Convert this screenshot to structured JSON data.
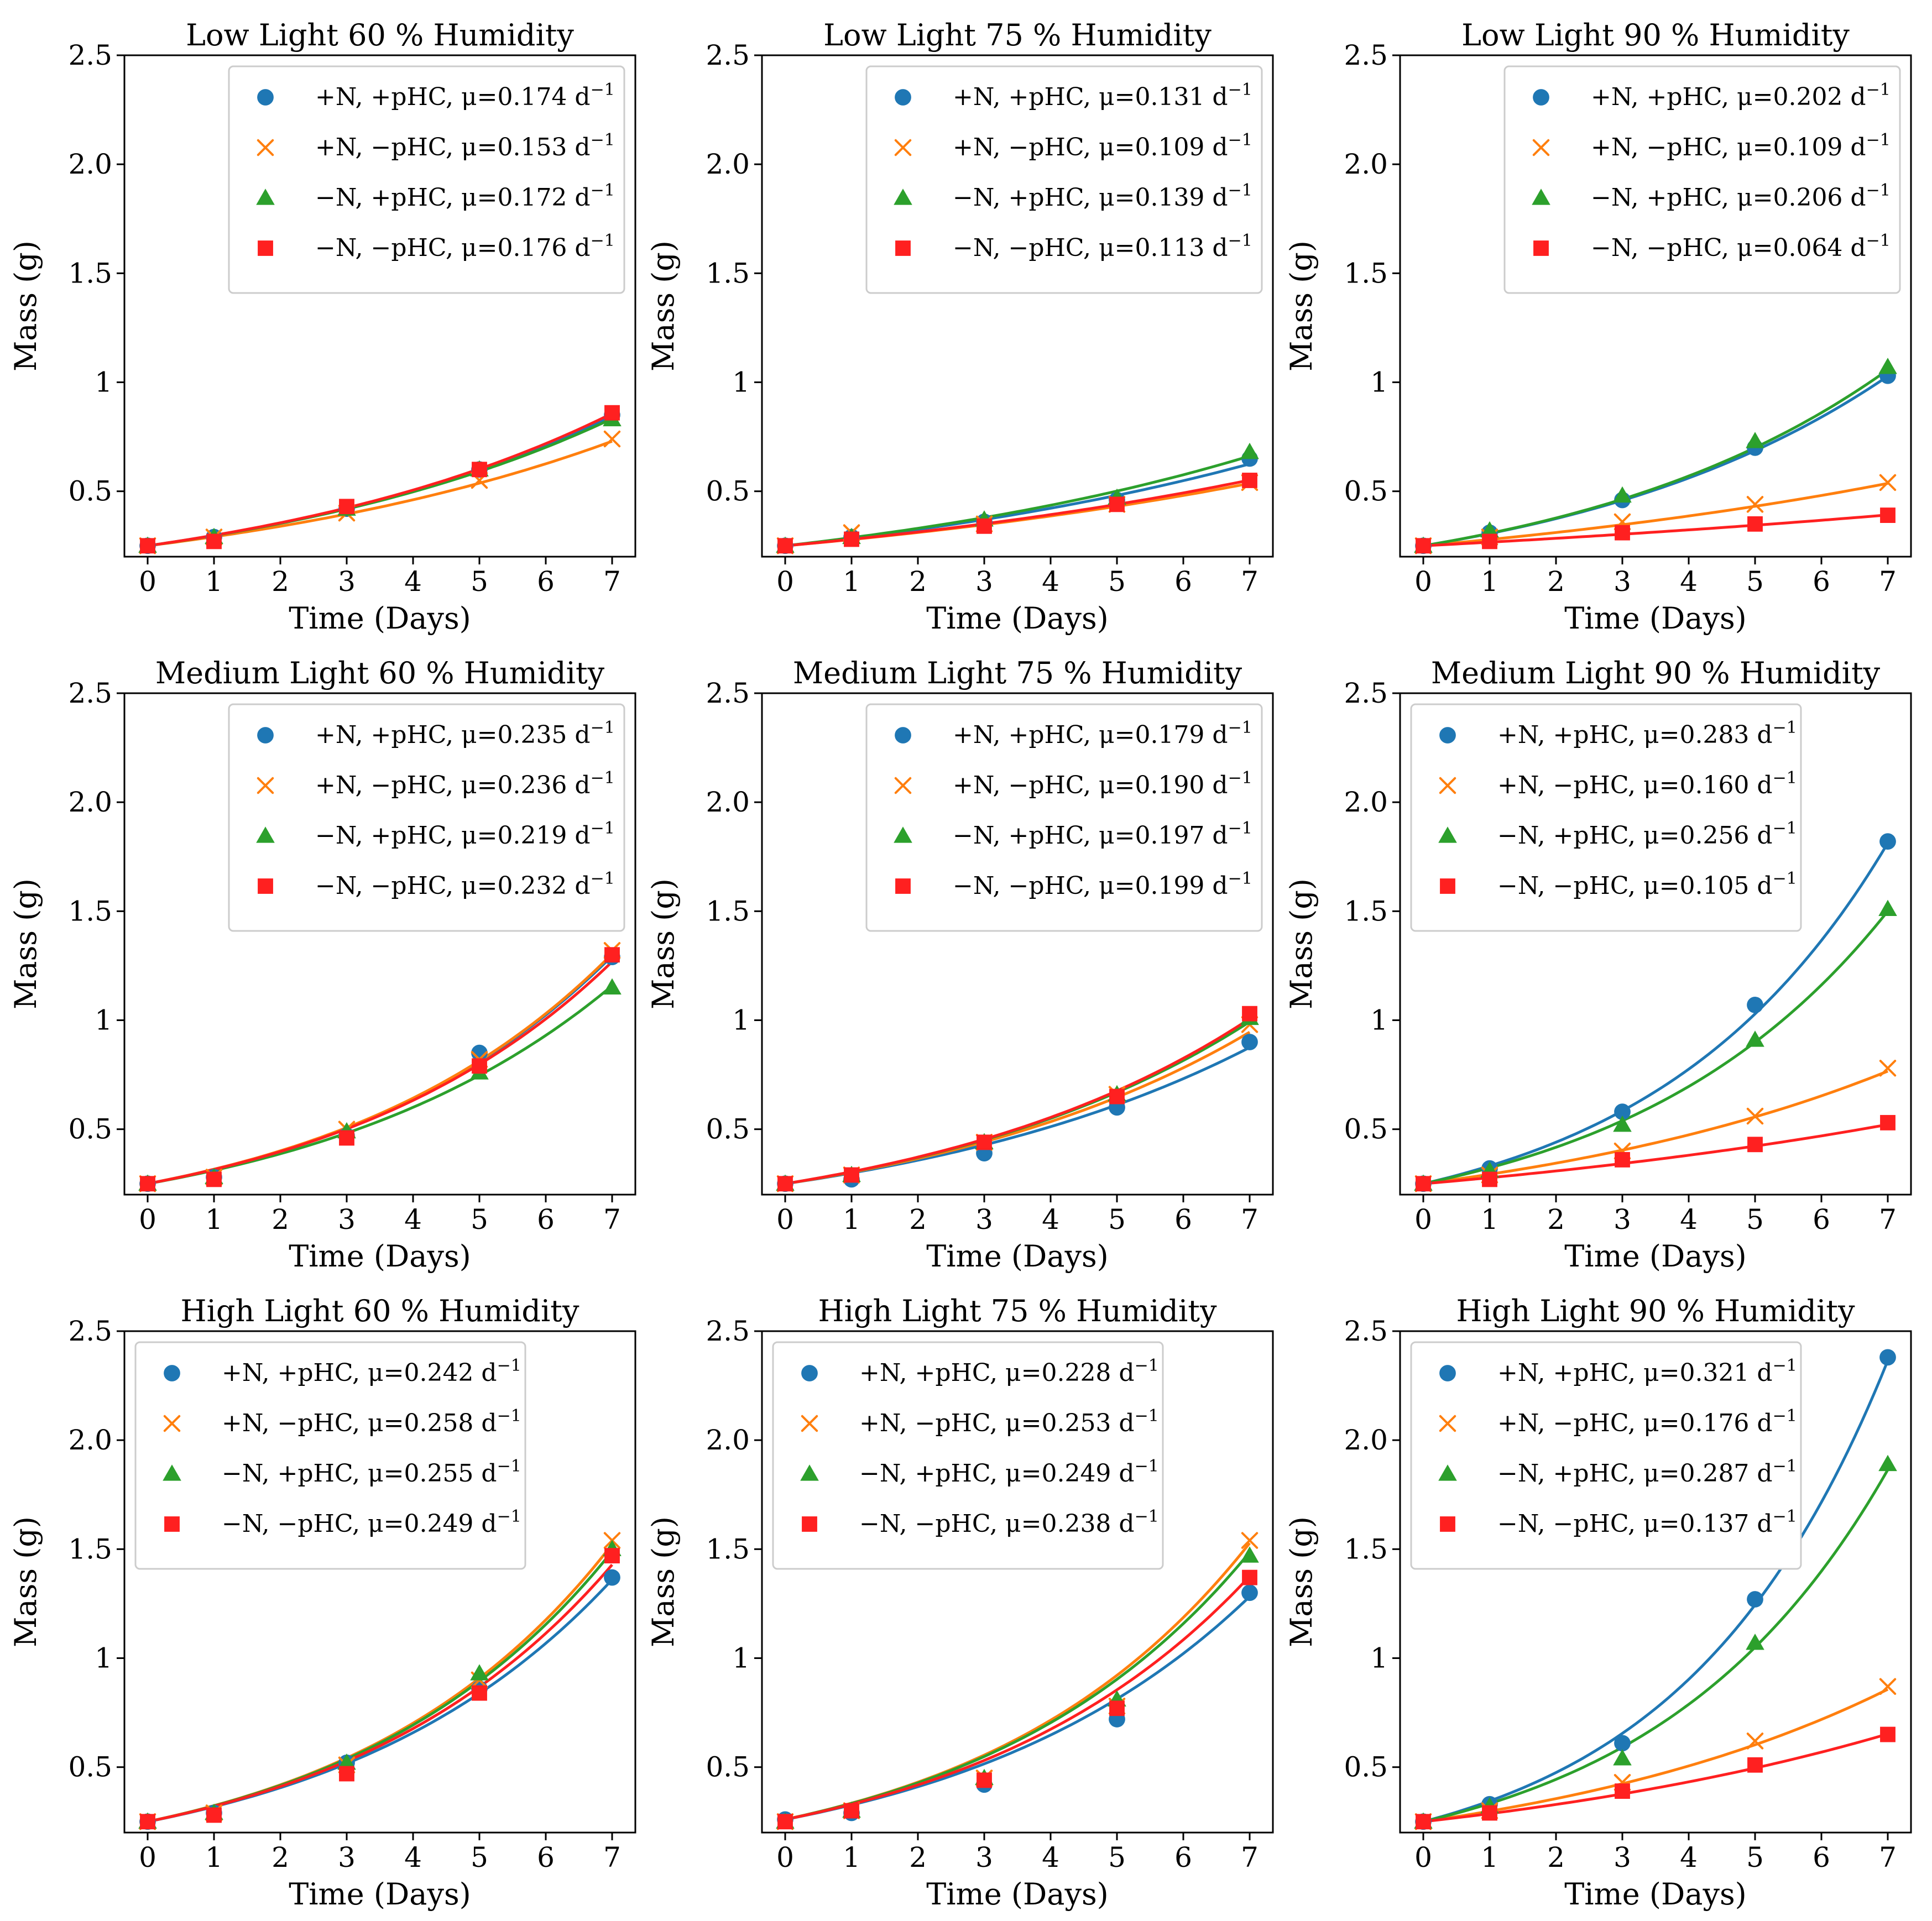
{
  "figure": {
    "colors": {
      "pNpPHC": "#1f77b4",
      "pNmPHC": "#ff7f0e",
      "mNpPHC": "#2ca02c",
      "mNmPHC": "#ff2020"
    },
    "markers": [
      "circle",
      "x",
      "triangle",
      "square"
    ],
    "series_labels": [
      "+N, +pHC, ",
      "+N, −pHC, ",
      "−N, +pHC, ",
      "−N, −pHC, "
    ],
    "rate_unit": " d",
    "rate_exponent": "−1"
  },
  "chart_data": [
    {
      "type": "scatter",
      "title": "Low Light 60 % Humidity",
      "xlabel": "Time (Days)",
      "ylabel": "Mass (g)",
      "xlim": [
        -0.35,
        7.35
      ],
      "ylim": [
        0.2,
        2.5
      ],
      "x_ticks": [
        0,
        1,
        2,
        3,
        4,
        5,
        6,
        7
      ],
      "x_tick_labels": [
        "0",
        "1",
        "2",
        "3",
        "4",
        "5",
        "6",
        "7"
      ],
      "y_ticks": [
        0.5,
        1.0,
        1.5,
        2.0,
        2.5
      ],
      "y_tick_labels": [
        "0.5",
        "1",
        "1.5",
        "2.0",
        "2.5"
      ],
      "legend_position": "top-right",
      "x": [
        0,
        1,
        3,
        5,
        7
      ],
      "series": [
        {
          "name": "+N, +pHC",
          "mu": "μ=0.174",
          "rate": 0.174,
          "values": [
            0.25,
            0.29,
            0.42,
            0.6,
            0.85
          ]
        },
        {
          "name": "+N, −pHC",
          "mu": "μ=0.153",
          "rate": 0.153,
          "values": [
            0.25,
            0.29,
            0.4,
            0.55,
            0.74
          ]
        },
        {
          "name": "−N, +pHC",
          "mu": "μ=0.172",
          "rate": 0.172,
          "values": [
            0.25,
            0.29,
            0.42,
            0.6,
            0.83
          ]
        },
        {
          "name": "−N, −pHC",
          "mu": "μ=0.176",
          "rate": 0.176,
          "values": [
            0.25,
            0.27,
            0.43,
            0.6,
            0.86
          ]
        }
      ]
    },
    {
      "type": "scatter",
      "title": "Low Light 75 % Humidity",
      "xlabel": "Time (Days)",
      "ylabel": "Mass (g)",
      "xlim": [
        -0.35,
        7.35
      ],
      "ylim": [
        0.2,
        2.5
      ],
      "x_ticks": [
        0,
        1,
        2,
        3,
        4,
        5,
        6,
        7
      ],
      "x_tick_labels": [
        "0",
        "1",
        "2",
        "3",
        "4",
        "5",
        "6",
        "7"
      ],
      "y_ticks": [
        0.5,
        1.0,
        1.5,
        2.0,
        2.5
      ],
      "y_tick_labels": [
        "0.5",
        "1",
        "1.5",
        "2.0",
        "2.5"
      ],
      "legend_position": "top-right",
      "x": [
        0,
        1,
        3,
        5,
        7
      ],
      "series": [
        {
          "name": "+N, +pHC",
          "mu": "μ=0.131",
          "rate": 0.131,
          "values": [
            0.25,
            0.29,
            0.36,
            0.46,
            0.65
          ]
        },
        {
          "name": "+N, −pHC",
          "mu": "μ=0.109",
          "rate": 0.109,
          "values": [
            0.25,
            0.31,
            0.35,
            0.44,
            0.54
          ]
        },
        {
          "name": "−N, +pHC",
          "mu": "μ=0.139",
          "rate": 0.139,
          "values": [
            0.25,
            0.29,
            0.37,
            0.47,
            0.68
          ]
        },
        {
          "name": "−N, −pHC",
          "mu": "μ=0.113",
          "rate": 0.113,
          "values": [
            0.25,
            0.28,
            0.34,
            0.44,
            0.55
          ]
        }
      ]
    },
    {
      "type": "scatter",
      "title": "Low Light 90 % Humidity",
      "xlabel": "Time (Days)",
      "ylabel": "Mass (g)",
      "xlim": [
        -0.35,
        7.35
      ],
      "ylim": [
        0.2,
        2.5
      ],
      "x_ticks": [
        0,
        1,
        2,
        3,
        4,
        5,
        6,
        7
      ],
      "x_tick_labels": [
        "0",
        "1",
        "2",
        "3",
        "4",
        "5",
        "6",
        "7"
      ],
      "y_ticks": [
        0.5,
        1.0,
        1.5,
        2.0,
        2.5
      ],
      "y_tick_labels": [
        "0.5",
        "1",
        "1.5",
        "2.0",
        "2.5"
      ],
      "legend_position": "top-right",
      "x": [
        0,
        1,
        3,
        5,
        7
      ],
      "series": [
        {
          "name": "+N, +pHC",
          "mu": "μ=0.202",
          "rate": 0.202,
          "values": [
            0.25,
            0.31,
            0.46,
            0.7,
            1.03
          ]
        },
        {
          "name": "+N, −pHC",
          "mu": "μ=0.109",
          "rate": 0.109,
          "values": [
            0.25,
            0.29,
            0.36,
            0.44,
            0.54
          ]
        },
        {
          "name": "−N, +pHC",
          "mu": "μ=0.206",
          "rate": 0.206,
          "values": [
            0.25,
            0.32,
            0.48,
            0.73,
            1.07
          ]
        },
        {
          "name": "−N, −pHC",
          "mu": "μ=0.064",
          "rate": 0.064,
          "values": [
            0.25,
            0.27,
            0.31,
            0.35,
            0.39
          ]
        }
      ]
    },
    {
      "type": "scatter",
      "title": "Medium Light 60 % Humidity",
      "xlabel": "Time (Days)",
      "ylabel": "Mass (g)",
      "xlim": [
        -0.35,
        7.35
      ],
      "ylim": [
        0.2,
        2.5
      ],
      "x_ticks": [
        0,
        1,
        2,
        3,
        4,
        5,
        6,
        7
      ],
      "x_tick_labels": [
        "0",
        "1",
        "2",
        "3",
        "4",
        "5",
        "6",
        "7"
      ],
      "y_ticks": [
        0.5,
        1.0,
        1.5,
        2.0,
        2.5
      ],
      "y_tick_labels": [
        "0.5",
        "1",
        "1.5",
        "2.0",
        "2.5"
      ],
      "legend_position": "top-right",
      "x": [
        0,
        1,
        3,
        5,
        7
      ],
      "series": [
        {
          "name": "+N, +pHC",
          "mu": "μ=0.235",
          "rate": 0.235,
          "values": [
            0.25,
            0.28,
            0.47,
            0.85,
            1.29
          ]
        },
        {
          "name": "+N, −pHC",
          "mu": "μ=0.236",
          "rate": 0.236,
          "values": [
            0.25,
            0.28,
            0.5,
            0.82,
            1.32
          ]
        },
        {
          "name": "−N, +pHC",
          "mu": "μ=0.219",
          "rate": 0.219,
          "values": [
            0.25,
            0.28,
            0.49,
            0.76,
            1.15
          ]
        },
        {
          "name": "−N, −pHC",
          "mu": "μ=0.232",
          "rate": 0.232,
          "values": [
            0.25,
            0.27,
            0.46,
            0.79,
            1.3
          ]
        }
      ]
    },
    {
      "type": "scatter",
      "title": "Medium Light 75 % Humidity",
      "xlabel": "Time (Days)",
      "ylabel": "Mass (g)",
      "xlim": [
        -0.35,
        7.35
      ],
      "ylim": [
        0.2,
        2.5
      ],
      "x_ticks": [
        0,
        1,
        2,
        3,
        4,
        5,
        6,
        7
      ],
      "x_tick_labels": [
        "0",
        "1",
        "2",
        "3",
        "4",
        "5",
        "6",
        "7"
      ],
      "y_ticks": [
        0.5,
        1.0,
        1.5,
        2.0,
        2.5
      ],
      "y_tick_labels": [
        "0.5",
        "1",
        "1.5",
        "2.0",
        "2.5"
      ],
      "legend_position": "top-right",
      "x": [
        0,
        1,
        3,
        5,
        7
      ],
      "series": [
        {
          "name": "+N, +pHC",
          "mu": "μ=0.179",
          "rate": 0.179,
          "values": [
            0.25,
            0.27,
            0.39,
            0.6,
            0.9
          ]
        },
        {
          "name": "+N, −pHC",
          "mu": "μ=0.190",
          "rate": 0.19,
          "values": [
            0.25,
            0.29,
            0.44,
            0.66,
            0.98
          ]
        },
        {
          "name": "−N, +pHC",
          "mu": "μ=0.197",
          "rate": 0.197,
          "values": [
            0.25,
            0.29,
            0.44,
            0.66,
            1.01
          ]
        },
        {
          "name": "−N, −pHC",
          "mu": "μ=0.199",
          "rate": 0.199,
          "values": [
            0.25,
            0.29,
            0.44,
            0.65,
            1.03
          ]
        }
      ]
    },
    {
      "type": "scatter",
      "title": "Medium Light 90 % Humidity",
      "xlabel": "Time (Days)",
      "ylabel": "Mass (g)",
      "xlim": [
        -0.35,
        7.35
      ],
      "ylim": [
        0.2,
        2.5
      ],
      "x_ticks": [
        0,
        1,
        2,
        3,
        4,
        5,
        6,
        7
      ],
      "x_tick_labels": [
        "0",
        "1",
        "2",
        "3",
        "4",
        "5",
        "6",
        "7"
      ],
      "y_ticks": [
        0.5,
        1.0,
        1.5,
        2.0,
        2.5
      ],
      "y_tick_labels": [
        "0.5",
        "1",
        "1.5",
        "2.0",
        "2.5"
      ],
      "legend_position": "top-left",
      "x": [
        0,
        1,
        3,
        5,
        7
      ],
      "series": [
        {
          "name": "+N, +pHC",
          "mu": "μ=0.283",
          "rate": 0.283,
          "values": [
            0.25,
            0.32,
            0.58,
            1.07,
            1.82
          ]
        },
        {
          "name": "+N, −pHC",
          "mu": "μ=0.160",
          "rate": 0.16,
          "values": [
            0.25,
            0.29,
            0.4,
            0.56,
            0.78
          ]
        },
        {
          "name": "−N, +pHC",
          "mu": "μ=0.256",
          "rate": 0.256,
          "values": [
            0.25,
            0.31,
            0.52,
            0.91,
            1.51
          ]
        },
        {
          "name": "−N, −pHC",
          "mu": "μ=0.105",
          "rate": 0.105,
          "values": [
            0.25,
            0.27,
            0.36,
            0.43,
            0.53
          ]
        }
      ]
    },
    {
      "type": "scatter",
      "title": "High Light 60 % Humidity",
      "xlabel": "Time (Days)",
      "ylabel": "Mass (g)",
      "xlim": [
        -0.35,
        7.35
      ],
      "ylim": [
        0.2,
        2.5
      ],
      "x_ticks": [
        0,
        1,
        2,
        3,
        4,
        5,
        6,
        7
      ],
      "x_tick_labels": [
        "0",
        "1",
        "2",
        "3",
        "4",
        "5",
        "6",
        "7"
      ],
      "y_ticks": [
        0.5,
        1.0,
        1.5,
        2.0,
        2.5
      ],
      "y_tick_labels": [
        "0.5",
        "1",
        "1.5",
        "2.0",
        "2.5"
      ],
      "legend_position": "top-left",
      "x": [
        0,
        1,
        3,
        5,
        7
      ],
      "series": [
        {
          "name": "+N, +pHC",
          "mu": "μ=0.242",
          "rate": 0.242,
          "values": [
            0.25,
            0.29,
            0.52,
            0.86,
            1.37
          ]
        },
        {
          "name": "+N, −pHC",
          "mu": "μ=0.258",
          "rate": 0.258,
          "values": [
            0.25,
            0.29,
            0.51,
            0.9,
            1.54
          ]
        },
        {
          "name": "−N, +pHC",
          "mu": "μ=0.255",
          "rate": 0.255,
          "values": [
            0.25,
            0.29,
            0.52,
            0.93,
            1.5
          ]
        },
        {
          "name": "−N, −pHC",
          "mu": "μ=0.249",
          "rate": 0.249,
          "values": [
            0.25,
            0.28,
            0.47,
            0.84,
            1.47
          ]
        }
      ]
    },
    {
      "type": "scatter",
      "title": "High Light 75 % Humidity",
      "xlabel": "Time (Days)",
      "ylabel": "Mass (g)",
      "xlim": [
        -0.35,
        7.35
      ],
      "ylim": [
        0.2,
        2.5
      ],
      "x_ticks": [
        0,
        1,
        2,
        3,
        4,
        5,
        6,
        7
      ],
      "x_tick_labels": [
        "0",
        "1",
        "2",
        "3",
        "4",
        "5",
        "6",
        "7"
      ],
      "y_ticks": [
        0.5,
        1.0,
        1.5,
        2.0,
        2.5
      ],
      "y_tick_labels": [
        "0.5",
        "1",
        "1.5",
        "2.0",
        "2.5"
      ],
      "legend_position": "top-left",
      "x": [
        0,
        1,
        3,
        5,
        7
      ],
      "series": [
        {
          "name": "+N, +pHC",
          "mu": "μ=0.228",
          "rate": 0.228,
          "values": [
            0.26,
            0.29,
            0.42,
            0.72,
            1.3
          ]
        },
        {
          "name": "+N, −pHC",
          "mu": "μ=0.253",
          "rate": 0.253,
          "values": [
            0.25,
            0.3,
            0.45,
            0.78,
            1.54
          ]
        },
        {
          "name": "−N, +pHC",
          "mu": "μ=0.249",
          "rate": 0.249,
          "values": [
            0.25,
            0.3,
            0.45,
            0.81,
            1.47
          ]
        },
        {
          "name": "−N, −pHC",
          "mu": "μ=0.238",
          "rate": 0.238,
          "values": [
            0.25,
            0.3,
            0.44,
            0.77,
            1.37
          ]
        }
      ]
    },
    {
      "type": "scatter",
      "title": "High Light 90 % Humidity",
      "xlabel": "Time (Days)",
      "ylabel": "Mass (g)",
      "xlim": [
        -0.35,
        7.35
      ],
      "ylim": [
        0.2,
        2.5
      ],
      "x_ticks": [
        0,
        1,
        2,
        3,
        4,
        5,
        6,
        7
      ],
      "x_tick_labels": [
        "0",
        "1",
        "2",
        "3",
        "4",
        "5",
        "6",
        "7"
      ],
      "y_ticks": [
        0.5,
        1.0,
        1.5,
        2.0,
        2.5
      ],
      "y_tick_labels": [
        "0.5",
        "1",
        "1.5",
        "2.0",
        "2.5"
      ],
      "legend_position": "top-left",
      "x": [
        0,
        1,
        3,
        5,
        7
      ],
      "series": [
        {
          "name": "+N, +pHC",
          "mu": "μ=0.321",
          "rate": 0.321,
          "values": [
            0.25,
            0.33,
            0.61,
            1.27,
            2.38
          ]
        },
        {
          "name": "+N, −pHC",
          "mu": "μ=0.176",
          "rate": 0.176,
          "values": [
            0.25,
            0.3,
            0.43,
            0.62,
            0.87
          ]
        },
        {
          "name": "−N, +pHC",
          "mu": "μ=0.287",
          "rate": 0.287,
          "values": [
            0.25,
            0.32,
            0.54,
            1.07,
            1.89
          ]
        },
        {
          "name": "−N, −pHC",
          "mu": "μ=0.137",
          "rate": 0.137,
          "values": [
            0.25,
            0.29,
            0.39,
            0.51,
            0.65
          ]
        }
      ]
    }
  ]
}
